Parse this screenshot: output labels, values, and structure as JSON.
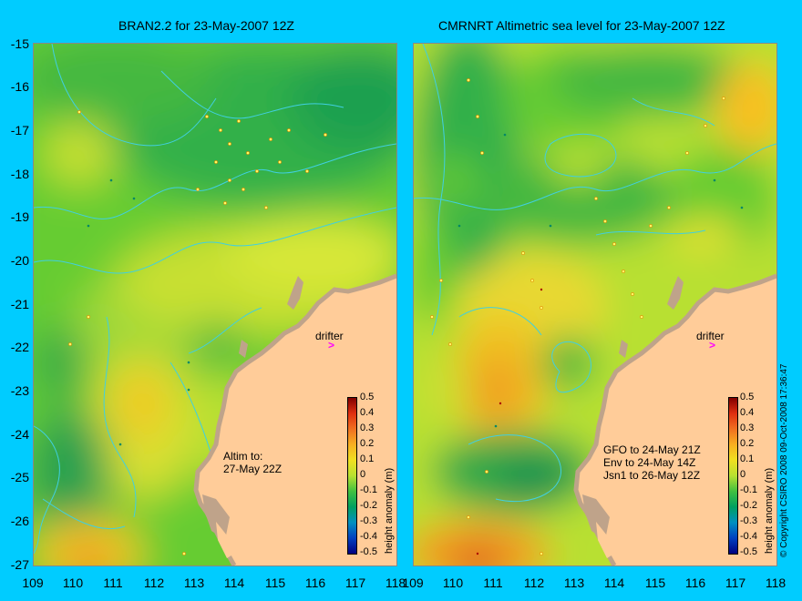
{
  "left": {
    "title": "BRAN2.2 for 23-May-2007 12Z",
    "drifter": "drifter",
    "annotation_line1": "Altim to:",
    "annotation_line2": "27-May 22Z"
  },
  "right": {
    "title": "CMRNRT Altimetric sea level  for 23-May-2007 12Z",
    "drifter": "drifter",
    "annotation_line1": "GFO to 24-May 21Z",
    "annotation_line2": "Env to 24-May 14Z",
    "annotation_line3": "Jsn1 to 26-May 12Z"
  },
  "lat_labels": [
    "-15",
    "-16",
    "-17",
    "-18",
    "-19",
    "-20",
    "-21",
    "-22",
    "-23",
    "-24",
    "-25",
    "-26",
    "-27"
  ],
  "lon_labels": [
    "109",
    "110",
    "111",
    "112",
    "113",
    "114",
    "115",
    "116",
    "117",
    "118"
  ],
  "colorbar": {
    "label": "height anomaly (m)",
    "ticks": [
      "0.5",
      "0.4",
      "0.3",
      "0.2",
      "0.1",
      "0",
      "-0.1",
      "-0.2",
      "-0.3",
      "-0.4",
      "-0.5"
    ]
  },
  "side_text": "© Copyright CSIRO 2008   09-Oct-2008 17:36:47",
  "colors": {
    "background": "#00ccff",
    "land": "#ffcc99",
    "coast": "#bfa38a",
    "contour": "#40d0e0",
    "drifter_arrow": "#ff00ff"
  }
}
